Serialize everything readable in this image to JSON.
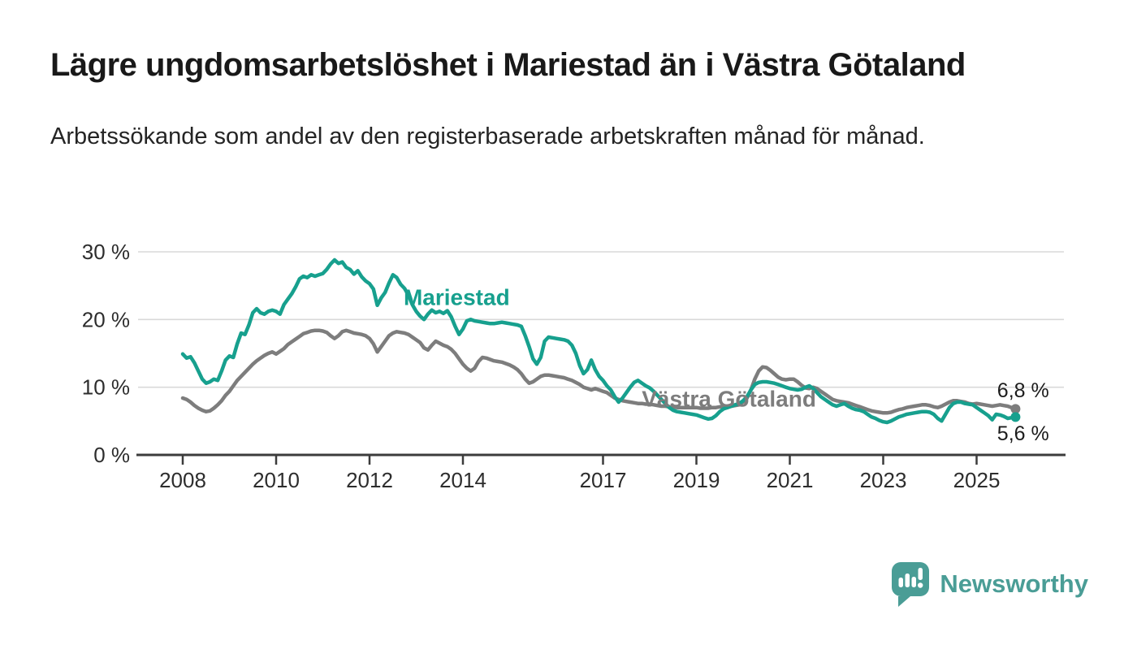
{
  "chart_data": {
    "type": "line",
    "title": "Lägre ungdomsarbetslöshet i Mariestad än i Västra Götaland",
    "subtitle": "Arbetssökande som andel av den registerbaserade arbetskraften månad för månad.",
    "frequency": "monthly",
    "x_start": {
      "year": 2008,
      "month": 1
    },
    "x_end": {
      "year": 2025,
      "month": 11
    },
    "ylim": [
      0,
      32
    ],
    "grid": "horizontal-only",
    "legend": "inline-labels",
    "axis_color": "#3c3c3c",
    "grid_color": "#d9d9d9",
    "tick_label_color": "#2d2d2d",
    "value_label_color": "#1c1c1c",
    "yticks": [
      {
        "value": 0,
        "label": "0 %"
      },
      {
        "value": 10,
        "label": "10 %"
      },
      {
        "value": 20,
        "label": "20 %"
      },
      {
        "value": 30,
        "label": "30 %"
      }
    ],
    "xticks": [
      {
        "year": 2008,
        "label": "2008"
      },
      {
        "year": 2010,
        "label": "2010"
      },
      {
        "year": 2012,
        "label": "2012"
      },
      {
        "year": 2014,
        "label": "2014"
      },
      {
        "year": 2017,
        "label": "2017"
      },
      {
        "year": 2019,
        "label": "2019"
      },
      {
        "year": 2021,
        "label": "2021"
      },
      {
        "year": 2023,
        "label": "2023"
      },
      {
        "year": 2025,
        "label": "2025"
      }
    ],
    "series": [
      {
        "name": "Mariestad",
        "color": "#17a08e",
        "label_anchor": {
          "year": 2012.73,
          "pct": 23.3
        },
        "values": [
          14.9,
          14.3,
          14.5,
          13.6,
          12.4,
          11.2,
          10.6,
          10.8,
          11.2,
          11.0,
          12.4,
          14.0,
          14.6,
          14.4,
          16.4,
          18.0,
          17.8,
          19.2,
          21.0,
          21.6,
          21.0,
          20.8,
          21.2,
          21.4,
          21.2,
          20.8,
          22.2,
          23.0,
          23.8,
          24.8,
          26.0,
          26.4,
          26.2,
          26.6,
          26.4,
          26.6,
          26.8,
          27.4,
          28.2,
          28.8,
          28.3,
          28.5,
          27.7,
          27.4,
          26.7,
          27.2,
          26.3,
          25.7,
          25.3,
          24.5,
          22.1,
          23.2,
          24.0,
          25.4,
          26.6,
          26.2,
          25.2,
          24.6,
          23.6,
          22.2,
          21.2,
          20.5,
          20.0,
          20.8,
          21.4,
          21.0,
          21.2,
          20.9,
          21.3,
          20.4,
          19.0,
          17.8,
          18.6,
          19.8,
          20.0,
          19.8,
          19.7,
          19.6,
          19.5,
          19.4,
          19.4,
          19.5,
          19.6,
          19.5,
          19.4,
          19.3,
          19.2,
          19.0,
          17.6,
          16.0,
          14.2,
          13.4,
          14.4,
          16.8,
          17.4,
          17.3,
          17.2,
          17.1,
          17.0,
          16.8,
          16.2,
          15.0,
          13.2,
          12.0,
          12.6,
          14.0,
          12.6,
          11.6,
          11.0,
          10.2,
          9.6,
          8.6,
          7.8,
          8.4,
          9.2,
          10.0,
          10.7,
          11.0,
          10.6,
          10.2,
          9.9,
          9.4,
          8.8,
          8.2,
          7.6,
          7.0,
          6.6,
          6.4,
          6.3,
          6.2,
          6.1,
          6.0,
          5.9,
          5.7,
          5.5,
          5.3,
          5.4,
          5.8,
          6.4,
          6.8,
          7.0,
          7.2,
          7.4,
          7.6,
          8.0,
          8.6,
          9.6,
          10.4,
          10.7,
          10.8,
          10.8,
          10.7,
          10.6,
          10.4,
          10.2,
          10.0,
          9.8,
          9.7,
          9.6,
          9.7,
          10.0,
          10.2,
          9.8,
          9.2,
          8.6,
          8.2,
          7.8,
          7.4,
          7.2,
          7.4,
          7.6,
          7.2,
          6.9,
          6.7,
          6.6,
          6.4,
          6.0,
          5.6,
          5.4,
          5.1,
          4.9,
          4.8,
          5.0,
          5.3,
          5.6,
          5.8,
          6.0,
          6.1,
          6.2,
          6.3,
          6.4,
          6.4,
          6.3,
          6.0,
          5.4,
          5.0,
          6.0,
          7.0,
          7.6,
          7.8,
          7.8,
          7.6,
          7.5,
          7.4,
          7.0,
          6.6,
          6.2,
          5.8,
          5.2,
          6.0,
          5.9,
          5.7,
          5.4,
          5.5,
          5.6
        ]
      },
      {
        "name": "Västra Götaland",
        "color": "#7d7d7d",
        "label_anchor": {
          "year": 2017.83,
          "pct": 8.3
        },
        "values": [
          8.4,
          8.2,
          7.8,
          7.3,
          6.9,
          6.6,
          6.4,
          6.5,
          6.9,
          7.4,
          8.0,
          8.8,
          9.4,
          10.2,
          11.0,
          11.6,
          12.2,
          12.8,
          13.4,
          13.9,
          14.3,
          14.7,
          15.0,
          15.2,
          14.9,
          15.3,
          15.7,
          16.3,
          16.7,
          17.1,
          17.5,
          17.9,
          18.1,
          18.3,
          18.4,
          18.4,
          18.3,
          18.1,
          17.6,
          17.2,
          17.6,
          18.2,
          18.4,
          18.2,
          18.0,
          17.9,
          17.8,
          17.6,
          17.2,
          16.4,
          15.2,
          16.0,
          16.8,
          17.6,
          18.0,
          18.2,
          18.1,
          18.0,
          17.8,
          17.4,
          17.0,
          16.6,
          15.8,
          15.5,
          16.2,
          16.8,
          16.5,
          16.2,
          16.0,
          15.6,
          15.0,
          14.2,
          13.4,
          12.8,
          12.4,
          12.8,
          13.8,
          14.4,
          14.3,
          14.1,
          13.9,
          13.8,
          13.7,
          13.5,
          13.3,
          13.0,
          12.6,
          12.0,
          11.2,
          10.6,
          10.8,
          11.2,
          11.6,
          11.8,
          11.8,
          11.7,
          11.6,
          11.5,
          11.4,
          11.2,
          11.0,
          10.7,
          10.4,
          10.0,
          9.8,
          9.6,
          9.8,
          9.6,
          9.4,
          9.2,
          8.8,
          8.4,
          8.2,
          8.0,
          7.9,
          7.8,
          7.7,
          7.6,
          7.6,
          7.5,
          7.5,
          7.4,
          7.3,
          7.2,
          7.2,
          7.1,
          7.1,
          7.0,
          7.0,
          7.0,
          7.0,
          7.0,
          7.0,
          6.9,
          6.9,
          6.9,
          7.0,
          7.0,
          7.1,
          7.1,
          7.2,
          7.2,
          7.3,
          7.4,
          7.8,
          8.4,
          9.6,
          11.2,
          12.4,
          13.0,
          12.9,
          12.5,
          12.0,
          11.5,
          11.2,
          11.1,
          11.2,
          11.2,
          10.8,
          10.3,
          9.9,
          9.8,
          10.0,
          9.8,
          9.4,
          9.0,
          8.6,
          8.2,
          8.0,
          7.9,
          7.8,
          7.7,
          7.5,
          7.3,
          7.1,
          6.9,
          6.7,
          6.5,
          6.4,
          6.3,
          6.2,
          6.2,
          6.3,
          6.5,
          6.7,
          6.8,
          7.0,
          7.1,
          7.2,
          7.3,
          7.4,
          7.4,
          7.3,
          7.1,
          7.0,
          7.2,
          7.5,
          7.8,
          8.0,
          8.0,
          7.9,
          7.8,
          7.6,
          7.5,
          7.6,
          7.5,
          7.4,
          7.3,
          7.2,
          7.3,
          7.4,
          7.3,
          7.2,
          7.0,
          6.8
        ]
      }
    ],
    "end_labels": [
      {
        "text": "6,8 %",
        "series": "Västra Götaland",
        "anchor": {
          "year": 2025.44,
          "pct": 9.5
        }
      },
      {
        "text": "5,6 %",
        "series": "Mariestad",
        "anchor": {
          "year": 2025.44,
          "pct": 3.1
        }
      }
    ]
  },
  "footer": {
    "brand": "Newsworthy",
    "brand_color": "#4a9d96",
    "icon": "newsworthy-chart-bubble-icon"
  }
}
